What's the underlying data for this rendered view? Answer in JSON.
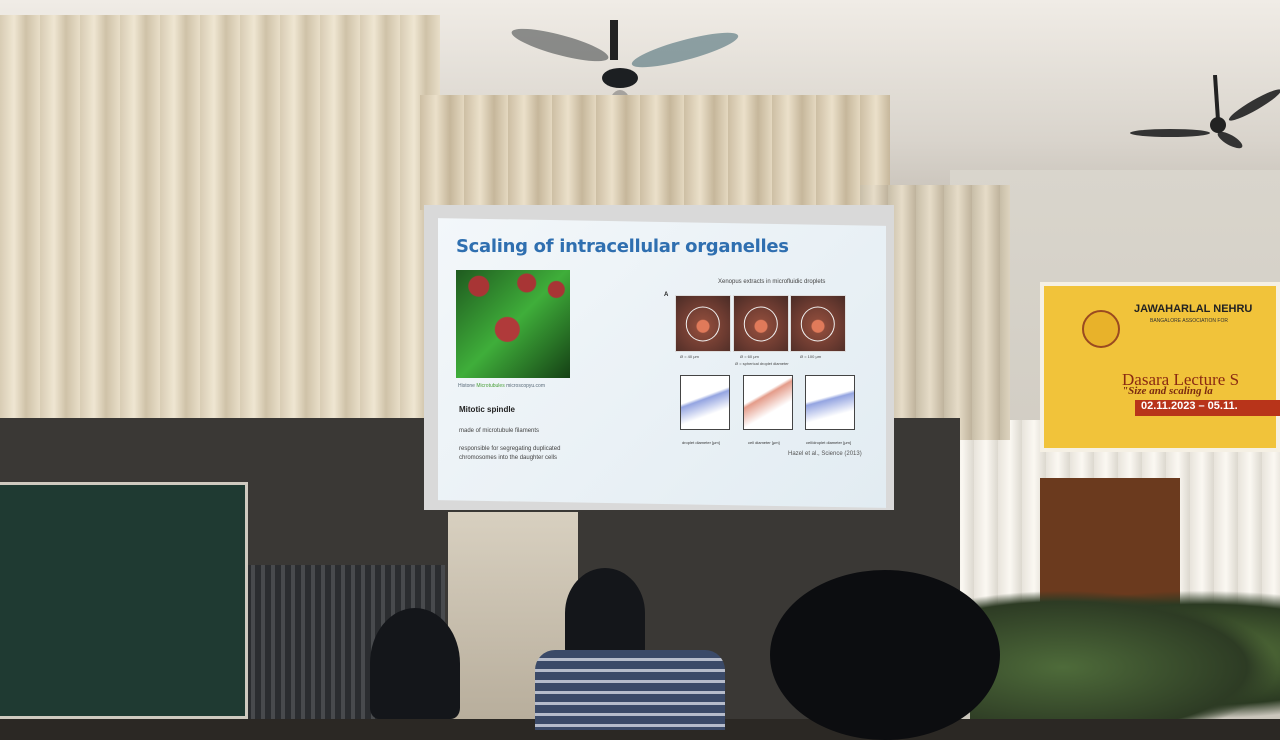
{
  "slide": {
    "title": "Scaling of intracellular organelles",
    "micrograph_caption": {
      "histone": "Histone",
      "microtubules": "Microtubules",
      "source": "microscopyu.com"
    },
    "heading": "Mitotic spindle",
    "lines": [
      "made of microtubule filaments",
      "responsible for segregating duplicated",
      "chromosomes into the daughter cells"
    ],
    "figure": {
      "title": "Xenopus extracts in microfluidic droplets",
      "panel_a_label": "A",
      "droplet_labels": [
        "Ø = 40 μm",
        "Ø = 60 μm",
        "Ø = 100 μm"
      ],
      "droplet_caption": "Ø = spherical droplet diameter",
      "x_labels": [
        "droplet diameter [μm]",
        "cell diameter [μm]",
        "cell/droplet diameter [μm]"
      ],
      "citation": "Hazel et al., Science (2013)"
    }
  },
  "banner": {
    "org_top": "JAWAHARLAL NEHRU",
    "org_sub": "BANGALORE ASSOCIATION FOR",
    "series": "Dasara Lecture S",
    "topic": "\"Size and scaling la",
    "dates": "02.11.2023 – 05.11."
  }
}
